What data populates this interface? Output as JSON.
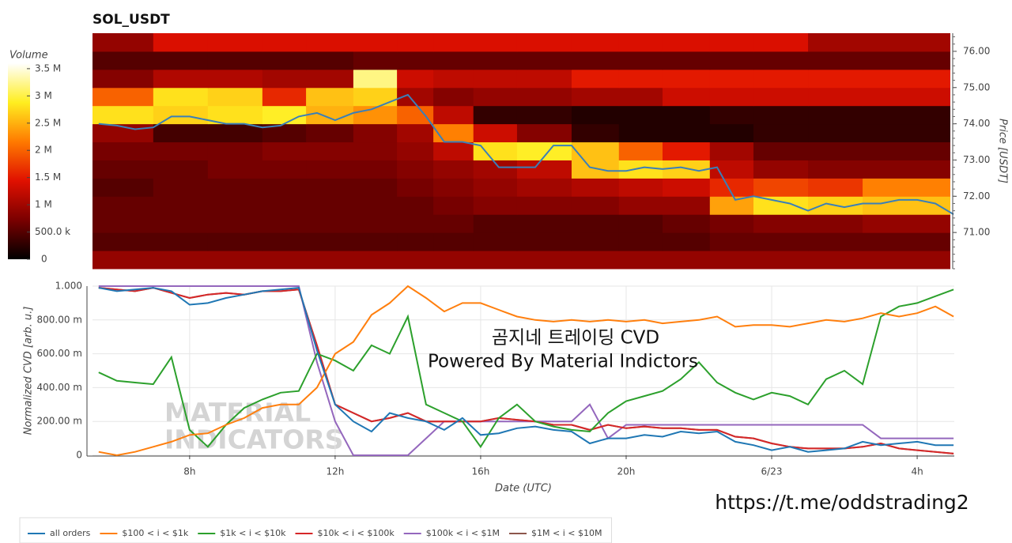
{
  "chart_data": [
    {
      "type": "heatmap",
      "title": "SOL_USDT",
      "ylabel": "Price [USDT]",
      "xlim": [
        5.33,
        29.02
      ],
      "ylim": [
        70,
        76.5
      ],
      "yticks": [
        {
          "value": 71,
          "label": "71.00"
        },
        {
          "value": 72,
          "label": "72.00"
        },
        {
          "value": 73,
          "label": "73.00"
        },
        {
          "value": 74,
          "label": "74.00"
        },
        {
          "value": 75,
          "label": "75.00"
        },
        {
          "value": 76,
          "label": "76.00"
        }
      ],
      "xbins": [
        5.33,
        7,
        8.5,
        10,
        11.2,
        12.5,
        13.7,
        14.7,
        15.8,
        17,
        18.5,
        19.8,
        21,
        22.3,
        23.5,
        25,
        26.5,
        28.9
      ],
      "ybins": [
        70,
        70.5,
        71,
        71.5,
        72,
        72.5,
        73,
        73.5,
        74,
        74.5,
        75,
        75.5,
        76,
        76.5
      ],
      "z": [
        [
          0.9,
          0.9,
          0.9,
          0.9,
          0.9,
          0.9,
          0.9,
          0.9,
          0.9,
          0.9,
          0.9,
          0.9,
          0.9,
          0.9,
          0.9,
          0.9,
          0.9
        ],
        [
          0.5,
          0.5,
          0.5,
          0.5,
          0.5,
          0.5,
          0.5,
          0.5,
          0.5,
          0.5,
          0.5,
          0.5,
          0.5,
          0.6,
          0.6,
          0.6,
          0.6
        ],
        [
          0.6,
          0.6,
          0.6,
          0.6,
          0.6,
          0.6,
          0.6,
          0.6,
          0.5,
          0.5,
          0.5,
          0.5,
          0.6,
          0.7,
          0.8,
          0.8,
          0.9
        ],
        [
          0.6,
          0.6,
          0.6,
          0.6,
          0.6,
          0.6,
          0.6,
          0.7,
          0.8,
          0.8,
          0.8,
          0.9,
          0.9,
          2.4,
          2.8,
          2.7,
          2.6
        ],
        [
          0.5,
          0.6,
          0.6,
          0.6,
          0.6,
          0.6,
          0.7,
          0.8,
          0.9,
          1.0,
          1.1,
          1.2,
          1.3,
          1.6,
          1.8,
          1.7,
          2.2
        ],
        [
          0.6,
          0.6,
          0.7,
          0.7,
          0.7,
          0.7,
          0.8,
          0.9,
          1.0,
          1.2,
          2.6,
          2.8,
          2.7,
          1.2,
          0.9,
          0.8,
          0.8
        ],
        [
          0.7,
          0.7,
          0.7,
          0.8,
          0.8,
          0.8,
          0.9,
          1.2,
          2.8,
          2.9,
          2.6,
          2.0,
          1.5,
          1.0,
          0.6,
          0.6,
          0.6
        ],
        [
          0.9,
          0.4,
          0.4,
          0.5,
          0.6,
          0.8,
          1.0,
          2.2,
          1.3,
          0.8,
          0.3,
          0.2,
          0.2,
          0.2,
          0.3,
          0.3,
          0.3
        ],
        [
          2.8,
          2.7,
          2.8,
          2.9,
          2.5,
          2.3,
          2.0,
          1.2,
          0.3,
          0.3,
          0.2,
          0.2,
          0.2,
          0.3,
          0.3,
          0.3,
          0.3
        ],
        [
          2.0,
          2.8,
          2.7,
          1.6,
          2.6,
          2.7,
          1.0,
          0.8,
          0.9,
          0.9,
          1.0,
          1.0,
          1.3,
          1.3,
          1.3,
          1.3,
          1.3
        ],
        [
          0.8,
          1.1,
          1.1,
          1.0,
          1.0,
          3.2,
          1.3,
          1.2,
          1.2,
          1.2,
          1.5,
          1.5,
          1.5,
          1.5,
          1.5,
          1.5,
          1.5
        ],
        [
          0.5,
          0.5,
          0.5,
          0.5,
          0.5,
          0.6,
          0.6,
          0.6,
          0.6,
          0.6,
          0.6,
          0.6,
          0.6,
          0.6,
          0.6,
          0.6,
          0.6
        ],
        [
          0.9,
          1.4,
          1.4,
          1.4,
          1.4,
          1.4,
          1.4,
          1.4,
          1.4,
          1.4,
          1.4,
          1.4,
          1.4,
          1.4,
          1.4,
          1.0,
          1.0
        ]
      ],
      "colorscale": [
        "#000000",
        "#7a0000",
        "#e01000",
        "#ff7a00",
        "#ffee20",
        "#ffffff"
      ],
      "clim": [
        0,
        3.6
      ],
      "colorbar": {
        "label": "Volume",
        "ticks": [
          0,
          {
            "value": 0.5,
            "label": "500.0 k"
          },
          {
            "value": 1,
            "label": "1 M"
          },
          {
            "value": 1.5,
            "label": "1.5 M"
          },
          {
            "value": 2,
            "label": "2 M"
          },
          {
            "value": 2.5,
            "label": "2.5 M"
          },
          {
            "value": 3,
            "label": "3 M"
          },
          {
            "value": 3.5,
            "label": "3.5 M"
          }
        ]
      },
      "x": [
        5.5,
        6,
        6.5,
        7,
        7.5,
        8,
        8.5,
        9,
        9.5,
        10,
        10.5,
        11,
        11.5,
        12,
        12.5,
        13,
        13.5,
        14,
        14.5,
        15,
        15.5,
        16,
        16.5,
        17,
        17.5,
        18,
        18.5,
        19,
        19.5,
        20,
        20.5,
        21,
        21.5,
        22,
        22.5,
        23,
        23.5,
        24,
        24.5,
        25,
        25.5,
        26,
        26.5,
        27,
        27.5,
        28,
        28.5,
        29
      ],
      "line": {
        "color": "#3a7fb8",
        "values": [
          74.0,
          73.95,
          73.85,
          73.9,
          74.2,
          74.2,
          74.1,
          74.0,
          74.0,
          73.9,
          73.95,
          74.2,
          74.3,
          74.1,
          74.3,
          74.4,
          74.6,
          74.8,
          74.2,
          73.5,
          73.5,
          73.4,
          72.8,
          72.8,
          72.8,
          73.4,
          73.4,
          72.8,
          72.7,
          72.7,
          72.8,
          72.75,
          72.8,
          72.7,
          72.8,
          71.9,
          72.0,
          71.9,
          71.8,
          71.6,
          71.8,
          71.7,
          71.8,
          71.8,
          71.9,
          71.9,
          71.8,
          71.5
        ]
      }
    },
    {
      "type": "line",
      "xlabel": "Date (UTC)",
      "ylabel": "Normalized CVD [arb. u.]",
      "xlim": [
        5.33,
        29.02
      ],
      "ylim": [
        0,
        1
      ],
      "xticks": [
        {
          "value": 8,
          "label": "8h"
        },
        {
          "value": 12,
          "label": "12h"
        },
        {
          "value": 16,
          "label": "16h"
        },
        {
          "value": 20,
          "label": "20h"
        },
        {
          "value": 24,
          "label": "6/23"
        },
        {
          "value": 28,
          "label": "4h"
        }
      ],
      "yticks": [
        0,
        {
          "value": 0.2,
          "label": "200.00 m"
        },
        {
          "value": 0.4,
          "label": "400.00 m"
        },
        {
          "value": 0.6,
          "label": "600.00 m"
        },
        {
          "value": 0.8,
          "label": "800.00 m"
        },
        {
          "value": 1,
          "label": "1.000"
        }
      ],
      "grid": true,
      "legend": "bottom-left",
      "x": [
        5.5,
        6,
        6.5,
        7,
        7.5,
        8,
        8.5,
        9,
        9.5,
        10,
        10.5,
        11,
        11.5,
        12,
        12.5,
        13,
        13.5,
        14,
        14.5,
        15,
        15.5,
        16,
        16.5,
        17,
        17.5,
        18,
        18.5,
        19,
        19.5,
        20,
        20.5,
        21,
        21.5,
        22,
        22.5,
        23,
        23.5,
        24,
        24.5,
        25,
        25.5,
        26,
        26.5,
        27,
        27.5,
        28,
        28.5,
        29
      ],
      "series": [
        {
          "name": "all orders",
          "color": "#1f77b4",
          "values": [
            0.99,
            0.97,
            0.98,
            0.99,
            0.97,
            0.89,
            0.9,
            0.93,
            0.95,
            0.97,
            0.98,
            0.99,
            0.62,
            0.3,
            0.2,
            0.14,
            0.25,
            0.22,
            0.2,
            0.15,
            0.22,
            0.12,
            0.13,
            0.16,
            0.17,
            0.15,
            0.14,
            0.07,
            0.1,
            0.1,
            0.12,
            0.11,
            0.14,
            0.13,
            0.14,
            0.08,
            0.06,
            0.03,
            0.05,
            0.02,
            0.03,
            0.04,
            0.08,
            0.06,
            0.07,
            0.08,
            0.06,
            0.06
          ]
        },
        {
          "name": "$100 < i < $1k",
          "color": "#ff7f0e",
          "values": [
            0.02,
            0.0,
            0.02,
            0.05,
            0.08,
            0.12,
            0.13,
            0.18,
            0.22,
            0.28,
            0.3,
            0.3,
            0.4,
            0.6,
            0.67,
            0.83,
            0.9,
            1.0,
            0.93,
            0.85,
            0.9,
            0.9,
            0.86,
            0.82,
            0.8,
            0.79,
            0.8,
            0.79,
            0.8,
            0.79,
            0.8,
            0.78,
            0.79,
            0.8,
            0.82,
            0.76,
            0.77,
            0.77,
            0.76,
            0.78,
            0.8,
            0.79,
            0.81,
            0.84,
            0.82,
            0.84,
            0.88,
            0.82
          ]
        },
        {
          "name": "$1k < i < $10k",
          "color": "#2ca02c",
          "values": [
            0.49,
            0.44,
            0.43,
            0.42,
            0.58,
            0.15,
            0.05,
            0.18,
            0.28,
            0.33,
            0.37,
            0.38,
            0.6,
            0.56,
            0.5,
            0.65,
            0.6,
            0.82,
            0.3,
            0.25,
            0.2,
            0.05,
            0.22,
            0.3,
            0.2,
            0.17,
            0.15,
            0.14,
            0.25,
            0.32,
            0.35,
            0.38,
            0.45,
            0.55,
            0.43,
            0.37,
            0.33,
            0.37,
            0.35,
            0.3,
            0.45,
            0.5,
            0.42,
            0.82,
            0.88,
            0.9,
            0.94,
            0.98
          ]
        },
        {
          "name": "$10k < i < $100k",
          "color": "#d62728",
          "values": [
            0.99,
            0.98,
            0.97,
            0.99,
            0.96,
            0.93,
            0.95,
            0.96,
            0.95,
            0.97,
            0.97,
            0.98,
            0.65,
            0.3,
            0.25,
            0.2,
            0.22,
            0.25,
            0.2,
            0.2,
            0.2,
            0.2,
            0.22,
            0.21,
            0.2,
            0.18,
            0.18,
            0.15,
            0.18,
            0.16,
            0.17,
            0.16,
            0.16,
            0.15,
            0.15,
            0.11,
            0.1,
            0.07,
            0.05,
            0.04,
            0.04,
            0.04,
            0.05,
            0.07,
            0.04,
            0.03,
            0.02,
            0.01
          ]
        },
        {
          "name": "$100k < i < $1M",
          "color": "#9467bd",
          "values": [
            1,
            1,
            1,
            1,
            1,
            1,
            1,
            1,
            1,
            1,
            1,
            1,
            0.55,
            0.2,
            0,
            0,
            0,
            0,
            0.1,
            0.2,
            0.2,
            0.2,
            0.2,
            0.2,
            0.2,
            0.2,
            0.2,
            0.3,
            0.1,
            0.18,
            0.18,
            0.18,
            0.18,
            0.18,
            0.18,
            0.18,
            0.18,
            0.18,
            0.18,
            0.18,
            0.18,
            0.18,
            0.18,
            0.1,
            0.1,
            0.1,
            0.1,
            0.1
          ]
        },
        {
          "name": "$1M < i < $10M",
          "color": "#8c564b",
          "values": [
            0.99,
            0.98,
            0.97,
            0.99,
            0.96,
            0.93,
            0.95,
            0.96,
            0.95,
            0.97,
            0.97,
            0.98,
            0.65,
            0.3,
            0.25,
            0.2,
            0.22,
            0.25,
            0.2,
            0.2,
            0.2,
            0.2,
            0.22,
            0.21,
            0.2,
            0.18,
            0.18,
            0.15,
            0.18,
            0.16,
            0.17,
            0.16,
            0.16,
            0.15,
            0.15,
            0.11,
            0.1,
            0.07,
            0.05,
            0.04,
            0.04,
            0.04,
            0.05,
            0.07,
            0.04,
            0.03,
            0.02,
            0.01
          ]
        }
      ],
      "annotations": [
        "곰지네 트레이딩 CVD",
        "Powered By Material Indictors"
      ],
      "watermark": [
        "MATERIAL",
        "INDICATORS"
      ],
      "link": "https://t.me/oddstrading2"
    }
  ]
}
